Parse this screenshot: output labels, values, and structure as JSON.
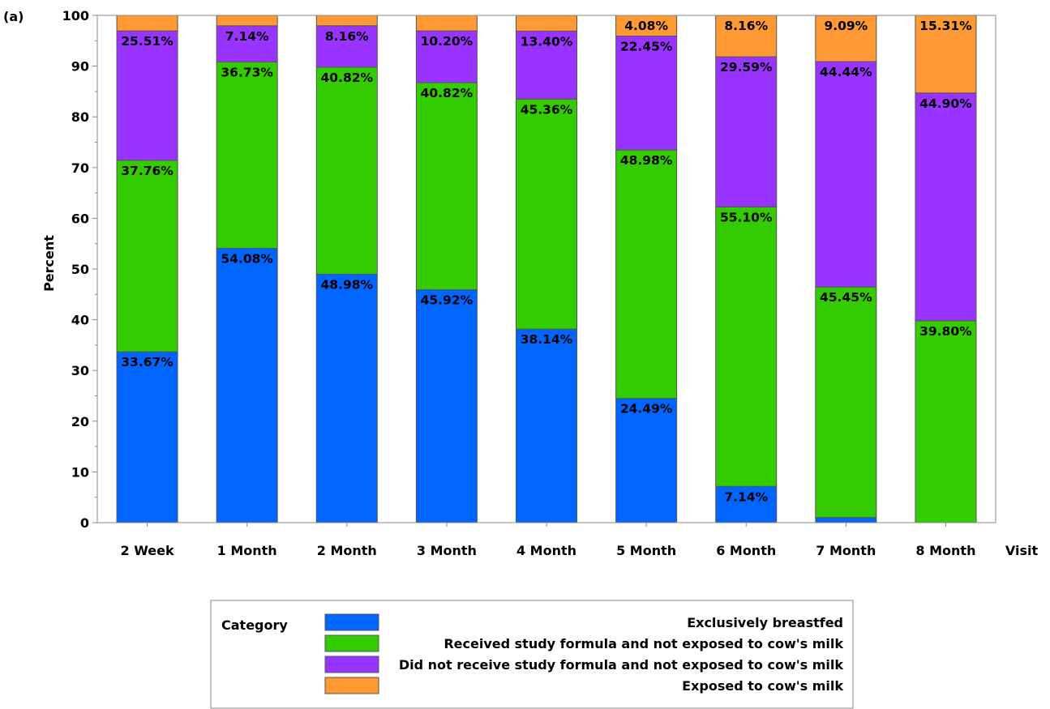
{
  "panel_label": "(a)",
  "colors": {
    "Exclusively breastfed": "#0066ff",
    "Received study formula and not exposed to cow's milk": "#33cc00",
    "Did not receive study formula and not exposed to cow's milk": "#9933ff",
    "Exposed to cow's milk": "#ff9933",
    "bar_outline": "#555555",
    "axis": "#888888"
  },
  "chart_data": {
    "type": "bar",
    "stacked": true,
    "title": "",
    "xlabel": "Visit",
    "ylabel": "Percent",
    "ylim": [
      0,
      100
    ],
    "yticks": [
      0,
      10,
      20,
      30,
      40,
      50,
      60,
      70,
      80,
      90,
      100
    ],
    "categories": [
      "2 Week",
      "1 Month",
      "2 Month",
      "3 Month",
      "4 Month",
      "5 Month",
      "6 Month",
      "7 Month",
      "8 Month"
    ],
    "series": [
      {
        "name": "Exclusively breastfed",
        "values": [
          33.67,
          54.08,
          48.98,
          45.92,
          38.14,
          24.49,
          7.14,
          1.0,
          0
        ],
        "labels": [
          "33.67%",
          "54.08%",
          "48.98%",
          "45.92%",
          "38.14%",
          "24.49%",
          "7.14%",
          "",
          ""
        ]
      },
      {
        "name": "Received study formula and not exposed to cow's milk",
        "values": [
          37.76,
          36.73,
          40.82,
          40.82,
          45.36,
          48.98,
          55.1,
          45.45,
          39.8
        ],
        "labels": [
          "37.76%",
          "36.73%",
          "40.82%",
          "40.82%",
          "45.36%",
          "48.98%",
          "55.10%",
          "45.45%",
          "39.80%"
        ]
      },
      {
        "name": "Did not receive study formula and not exposed to cow's milk",
        "values": [
          25.51,
          7.14,
          8.16,
          10.2,
          13.4,
          22.45,
          29.59,
          44.44,
          44.9
        ],
        "labels": [
          "25.51%",
          "7.14%",
          "8.16%",
          "10.20%",
          "13.40%",
          "22.45%",
          "29.59%",
          "44.44%",
          "44.90%"
        ]
      },
      {
        "name": "Exposed to cow's milk",
        "values": [
          3.06,
          2.04,
          2.04,
          3.06,
          3.09,
          4.08,
          8.16,
          9.09,
          15.31
        ],
        "labels": [
          "",
          "",
          "",
          "",
          "",
          "4.08%",
          "8.16%",
          "9.09%",
          "15.31%"
        ]
      }
    ],
    "legend": {
      "title": "Category",
      "position": "bottom",
      "entries": [
        "Exclusively breastfed",
        "Received study formula and not exposed to cow's milk",
        "Did not receive study formula and not exposed to cow's milk",
        "Exposed to cow's milk"
      ]
    }
  }
}
